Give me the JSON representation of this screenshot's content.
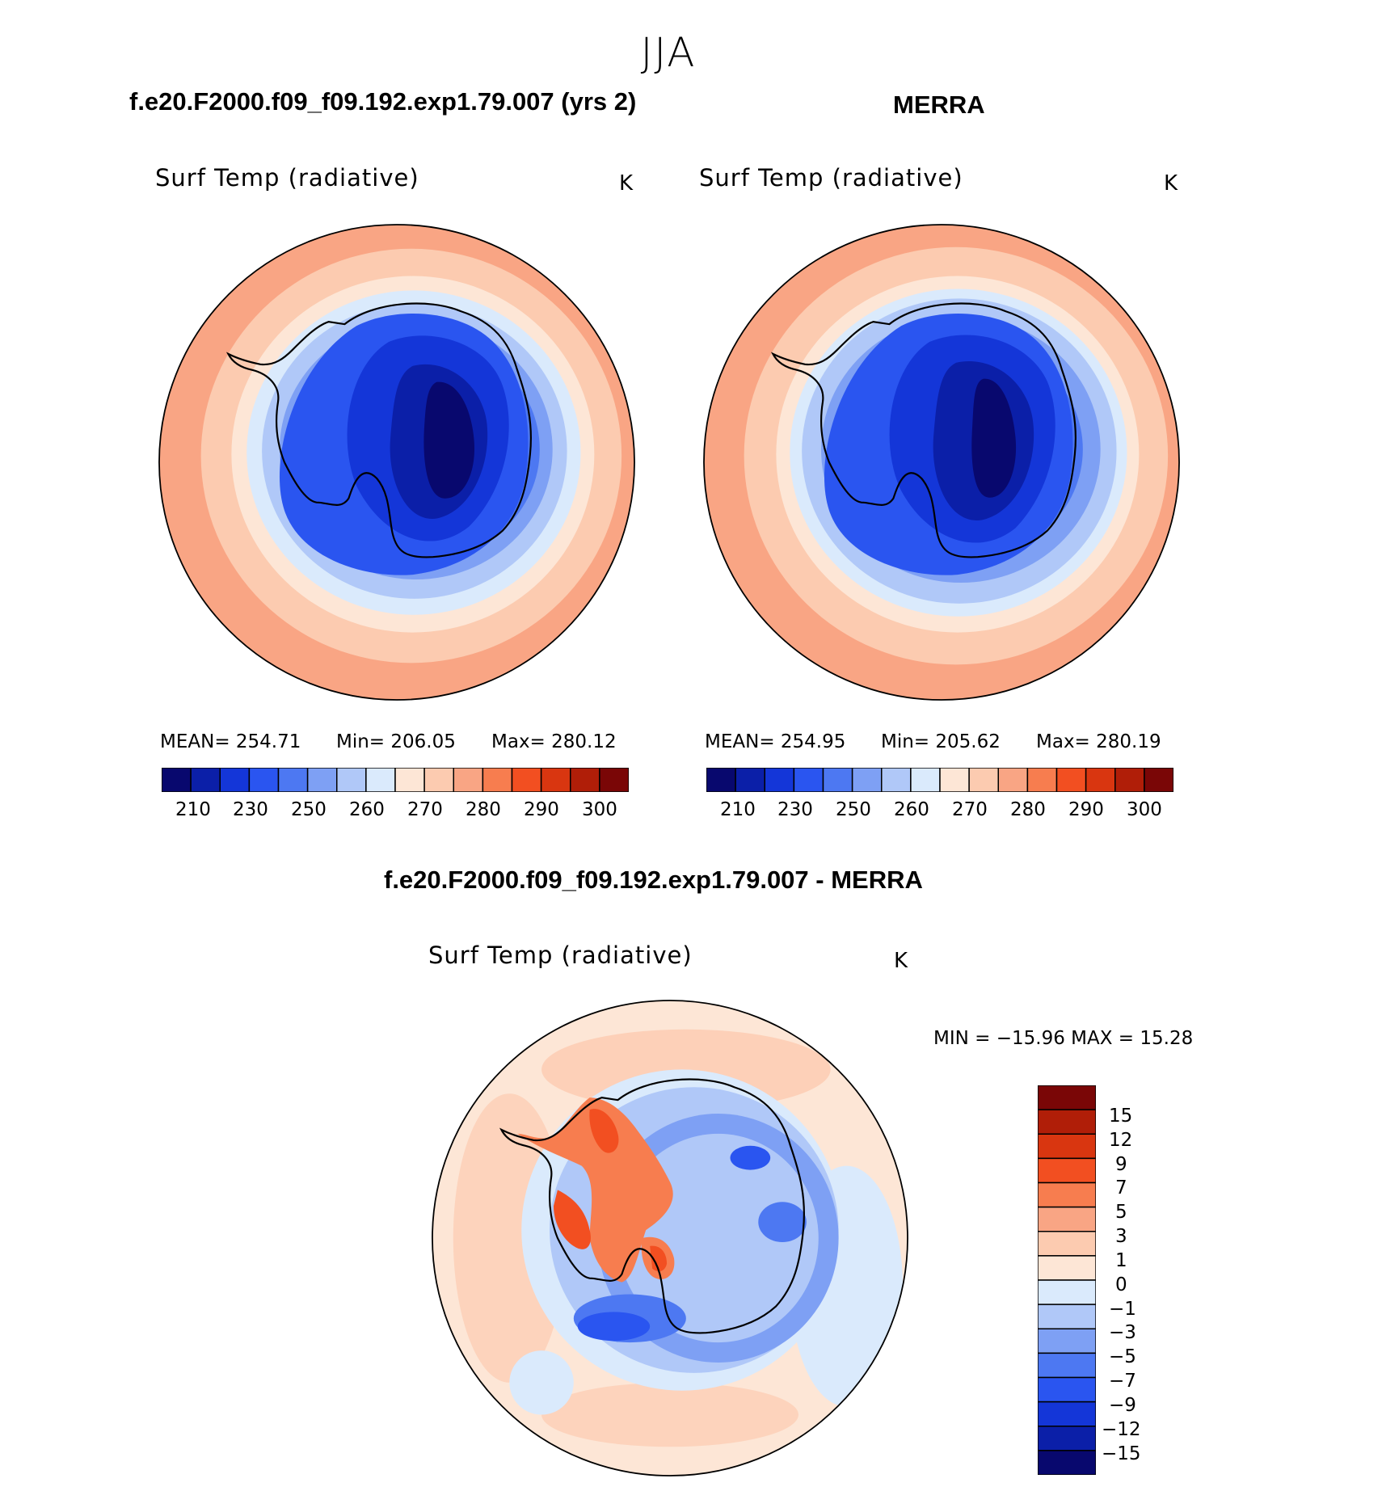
{
  "season": "JJA",
  "panels": [
    {
      "header": "f.e20.F2000.f09_f09.192.exp1.79.007 (yrs 2)",
      "variable": "Surf Temp (radiative)",
      "units": "K",
      "stats": {
        "mean": "MEAN= 254.71",
        "min": "Min= 206.05",
        "max": "Max= 280.12"
      },
      "colorbar_ticks": [
        "210",
        "230",
        "250",
        "260",
        "270",
        "280",
        "290",
        "300"
      ]
    },
    {
      "header": "MERRA",
      "variable": "Surf Temp (radiative)",
      "units": "K",
      "stats": {
        "mean": "MEAN= 254.95",
        "min": "Min= 205.62",
        "max": "Max= 280.19"
      },
      "colorbar_ticks": [
        "210",
        "230",
        "250",
        "260",
        "270",
        "280",
        "290",
        "300"
      ]
    }
  ],
  "difference": {
    "header": "f.e20.F2000.f09_f09.192.exp1.79.007 - MERRA",
    "variable": "Surf Temp (radiative)",
    "units": "K",
    "minmax": "MIN = −15.96 MAX =   15.28",
    "colorbar_ticks": [
      "15",
      "12",
      "9",
      "7",
      "5",
      "3",
      "1",
      "0",
      "−1",
      "−3",
      "−5",
      "−7",
      "−9",
      "−12",
      "−15"
    ]
  },
  "colors": {
    "abs_scale": [
      "#08086e",
      "#0b1fa8",
      "#1436d8",
      "#2a55f0",
      "#4d78f2",
      "#7ea0f4",
      "#b0c8f8",
      "#daeafc",
      "#fde6d6",
      "#fccbb0",
      "#f9a584",
      "#f77d4f",
      "#f24f21",
      "#d93610",
      "#b01e08",
      "#7a0606"
    ],
    "diff_scale": [
      "#7a0606",
      "#b01e08",
      "#d93610",
      "#f24f21",
      "#f77d4f",
      "#f9a584",
      "#fccbb0",
      "#fde6d6",
      "#daeafc",
      "#b0c8f8",
      "#7ea0f4",
      "#4d78f2",
      "#2a55f0",
      "#1436d8",
      "#0b1fa8",
      "#08086e"
    ]
  }
}
